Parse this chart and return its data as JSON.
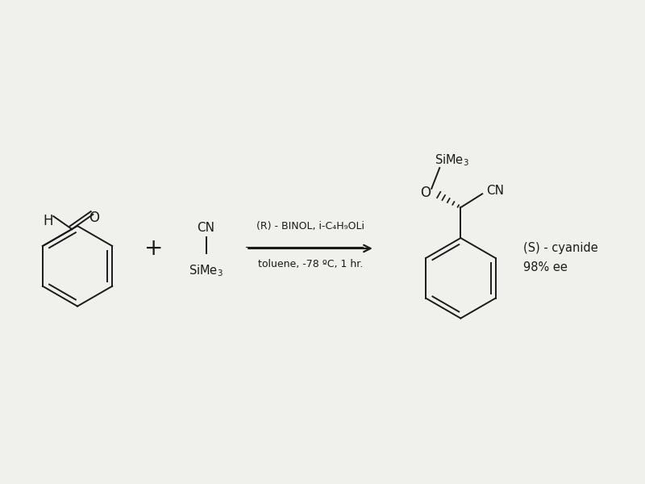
{
  "bg_color": "#f0f0ec",
  "line_color": "#1a1a1a",
  "font_color": "#1a1a1a",
  "font_family": "DejaVu Sans",
  "fig_width": 8.0,
  "fig_height": 6.0,
  "dpi": 100,
  "reagent_line1": "(R) - BINOL, i-C₄H₉OLi",
  "reagent_line2": "toluene, -78 ºC, 1 hr.",
  "product_label1": "(S) - cyanide",
  "product_label2": "98% ee"
}
